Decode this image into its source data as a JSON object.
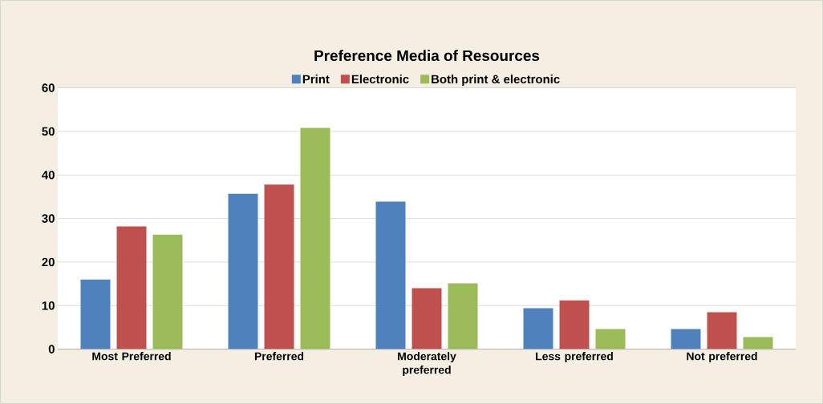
{
  "chart_data": {
    "type": "bar",
    "title": "Preference Media of Resources",
    "categories": [
      "Most Preferred",
      "Preferred",
      "Moderately preferred",
      "Less preferred",
      "Not preferred"
    ],
    "series": [
      {
        "name": "Print",
        "color": "#4f81bd",
        "values": [
          16,
          35.7,
          33.9,
          9.4,
          4.6
        ]
      },
      {
        "name": "Electronic",
        "color": "#c0504d",
        "values": [
          28.2,
          37.8,
          14,
          11.2,
          8.5
        ]
      },
      {
        "name": "Both print & electronic",
        "color": "#9bbb59",
        "values": [
          26.3,
          50.8,
          15.1,
          4.6,
          2.8
        ]
      }
    ],
    "ylim": [
      0,
      60
    ],
    "yticks": [
      0,
      10,
      20,
      30,
      40,
      50,
      60
    ],
    "grid": "y",
    "legend": "top"
  }
}
